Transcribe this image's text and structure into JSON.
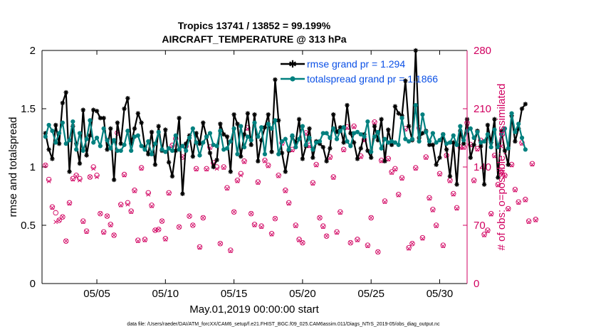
{
  "chart_data": {
    "type": "line",
    "title": "Tropics 13741 / 13852 = 99.199%",
    "subtitle": "AIRCRAFT_TEMPERATURE @ 313 hPa",
    "xlabel": "May.01,2019 00:00:00 start",
    "ylabel_left": "rmse and totalspread",
    "ylabel_right": "# of obs: o=possible; ×=assimilated",
    "footer": "data file: /Users/raeder/DAI/ATM_forcXX/CAM6_setup/f.e21.FHIST_BGC.f09_025.CAM6assim.011/Diags_NTrS_2019-05/obs_diag_output.nc",
    "x_range_days": [
      1,
      32
    ],
    "ylim_left": [
      0,
      2
    ],
    "ylim_right": [
      0,
      280
    ],
    "x_ticks": [
      {
        "day": 5,
        "label": "05/05"
      },
      {
        "day": 10,
        "label": "05/10"
      },
      {
        "day": 15,
        "label": "05/15"
      },
      {
        "day": 20,
        "label": "05/20"
      },
      {
        "day": 25,
        "label": "05/25"
      },
      {
        "day": 30,
        "label": "05/30"
      }
    ],
    "y_ticks_left": [
      {
        "value": 0,
        "label": "0"
      },
      {
        "value": 0.5,
        "label": "0.5"
      },
      {
        "value": 1,
        "label": "1"
      },
      {
        "value": 1.5,
        "label": "1.5"
      },
      {
        "value": 2,
        "label": "2"
      }
    ],
    "y_ticks_right": [
      {
        "value": 0,
        "label": "0"
      },
      {
        "value": 70,
        "label": "70"
      },
      {
        "value": 140,
        "label": "140"
      },
      {
        "value": 210,
        "label": "210"
      },
      {
        "value": 280,
        "label": "280"
      }
    ],
    "start_day": 1.25,
    "step_days": 0.25,
    "series": [
      {
        "name": "rmse",
        "legend": "rmse grand pr = 1.294",
        "color": "#000000",
        "values": [
          1.29,
          1.15,
          1.07,
          1.36,
          1.2,
          1.55,
          1.64,
          0.96,
          1.35,
          1.2,
          1.03,
          1.49,
          1.1,
          1.27,
          1.49,
          1.48,
          1.42,
          1.42,
          1.15,
          1.33,
          0.89,
          1.38,
          1.2,
          1.5,
          1.59,
          1.2,
          1.33,
          1.46,
          1.38,
          1.17,
          1.11,
          1.3,
          1.02,
          1.35,
          1.14,
          1.32,
          1.04,
          0.92,
          1.14,
          1.42,
          0.77,
          1.2,
          1.27,
          1.09,
          1.29,
          1.2,
          1.38,
          1.26,
          1.12,
          1.0,
          1.06,
          1.37,
          1.28,
          1.26,
          0.96,
          1.45,
          1.37,
          1.09,
          1.28,
          1.46,
          1.19,
          1.45,
          1.05,
          1.23,
          1.34,
          1.45,
          1.13,
          1.75,
          1.4,
          1.12,
          0.96,
          1.14,
          1.26,
          1.21,
          1.41,
          1.07,
          1.18,
          1.33,
          1.08,
          1.22,
          1.2,
          1.17,
          1.05,
          1.16,
          1.45,
          1.3,
          1.34,
          1.21,
          1.53,
          1.29,
          1.21,
          1.07,
          1.16,
          1.28,
          1.14,
          1.08,
          1.35,
          1.23,
          1.41,
          1.05,
          1.32,
          1.19,
          1.52,
          1.46,
          1.44,
          1.74,
          1.35,
          1.23,
          2.0,
          1.25,
          1.29,
          1.31,
          1.19,
          1.19,
          1.02,
          1.08,
          1.28,
          1.15,
          0.92,
          1.21,
          0.85,
          1.31,
          1.2,
          1.41,
          1.08,
          1.19,
          1.31,
          1.18,
          0.85,
          1.36,
          1.21,
          1.41,
          0.91,
          1.31,
          1.14,
          1.02,
          1.44,
          1.22,
          1.33,
          1.5,
          1.54
        ]
      },
      {
        "name": "totalspread",
        "legend": "totalspread grand pr = 1.1866",
        "color": "#00807f",
        "values": [
          1.26,
          1.36,
          1.31,
          1.21,
          1.29,
          1.38,
          1.2,
          1.23,
          1.39,
          1.15,
          1.29,
          1.14,
          1.24,
          1.4,
          1.21,
          1.25,
          1.18,
          1.33,
          1.23,
          1.16,
          1.23,
          1.14,
          1.14,
          1.19,
          1.31,
          1.14,
          1.26,
          1.27,
          1.18,
          1.15,
          1.22,
          1.11,
          1.2,
          1.3,
          1.15,
          1.13,
          1.16,
          1.14,
          1.27,
          1.15,
          1.18,
          1.14,
          1.25,
          1.33,
          1.21,
          1.1,
          1.21,
          1.26,
          1.29,
          1.19,
          1.18,
          1.31,
          1.15,
          1.16,
          1.22,
          1.33,
          1.11,
          1.35,
          1.17,
          1.26,
          1.23,
          1.38,
          1.26,
          1.34,
          1.11,
          1.37,
          1.33,
          1.4,
          1.11,
          1.22,
          1.24,
          1.15,
          1.27,
          1.17,
          1.24,
          1.35,
          1.19,
          1.25,
          1.15,
          1.21,
          1.22,
          1.29,
          1.29,
          1.25,
          1.33,
          1.24,
          1.31,
          1.34,
          1.22,
          1.18,
          1.29,
          1.3,
          1.28,
          1.26,
          1.39,
          1.13,
          1.26,
          1.3,
          1.16,
          1.24,
          1.21,
          1.22,
          1.21,
          1.19,
          1.42,
          1.24,
          1.22,
          1.24,
          1.53,
          1.22,
          1.45,
          1.3,
          1.22,
          1.29,
          1.21,
          1.23,
          1.28,
          1.2,
          1.21,
          1.27,
          1.19,
          1.35,
          1.23,
          1.31,
          1.33,
          1.25,
          1.3,
          1.21,
          1.22,
          1.28,
          1.17,
          1.32,
          1.17,
          1.28,
          1.33,
          1.16,
          1.46,
          1.3,
          1.37,
          1.25,
          1.15
        ]
      },
      {
        "name": "obs_possible",
        "color": "#d10060",
        "values": [
          142,
          125,
          92,
          85,
          76,
          80,
          51,
          97,
          126,
          130,
          126,
          75,
          63,
          128,
          140,
          130,
          84,
          62,
          81,
          71,
          58,
          181,
          95,
          131,
          97,
          87,
          112,
          52,
          139,
          53,
          109,
          94,
          64,
          65,
          75,
          54,
          109,
          166,
          174,
          68,
          152,
          165,
          81,
          70,
          138,
          44,
          79,
          138,
          164,
          145,
          140,
          48,
          140,
          115,
          40,
          86,
          124,
          132,
          147,
          187,
          84,
          71,
          122,
          69,
          148,
          142,
          60,
          78,
          130,
          169,
          112,
          97,
          161,
          70,
          53,
          49,
          181,
          166,
          121,
          143,
          79,
          69,
          57,
          152,
          128,
          62,
          86,
          161,
          188,
          49,
          189,
          53,
          153,
          173,
          46,
          79,
          194,
          38,
          148,
          99,
          150,
          134,
          138,
          107,
          127,
          186,
          43,
          48,
          139,
          187,
          55,
          152,
          103,
          89,
          70,
          132,
          46,
          154,
          124,
          108,
          91,
          164,
          164,
          193,
          167,
          124,
          162,
          172,
          59,
          64,
          84,
          154,
          119,
          134,
          130,
          90,
          143,
          113,
          98,
          169,
          101,
          75,
          144,
          77
        ]
      },
      {
        "name": "obs_assimilated",
        "color": "#d10060",
        "values": [
          142,
          123,
          91,
          74,
          76,
          80,
          51,
          96,
          125,
          129,
          124,
          74,
          62,
          128,
          138,
          128,
          84,
          61,
          81,
          70,
          58,
          181,
          94,
          130,
          95,
          86,
          111,
          51,
          138,
          52,
          107,
          93,
          64,
          65,
          75,
          53,
          108,
          165,
          173,
          68,
          152,
          162,
          81,
          70,
          137,
          43,
          79,
          137,
          163,
          144,
          138,
          48,
          139,
          114,
          39,
          86,
          123,
          130,
          146,
          186,
          84,
          70,
          121,
          68,
          147,
          141,
          59,
          78,
          129,
          168,
          111,
          96,
          160,
          69,
          52,
          49,
          180,
          165,
          120,
          142,
          79,
          68,
          57,
          151,
          127,
          61,
          85,
          160,
          187,
          49,
          188,
          52,
          152,
          172,
          45,
          79,
          193,
          38,
          147,
          98,
          149,
          133,
          137,
          106,
          126,
          185,
          42,
          48,
          138,
          186,
          54,
          151,
          102,
          88,
          69,
          131,
          45,
          153,
          123,
          107,
          90,
          163,
          163,
          192,
          166,
          123,
          161,
          171,
          58,
          63,
          83,
          153,
          118,
          133,
          129,
          89,
          142,
          112,
          97,
          168,
          100,
          74,
          143,
          76
        ]
      }
    ]
  },
  "colors": {
    "left_axis": "#000000",
    "right_axis": "#d10060",
    "legend_text": "#0b50e6"
  }
}
